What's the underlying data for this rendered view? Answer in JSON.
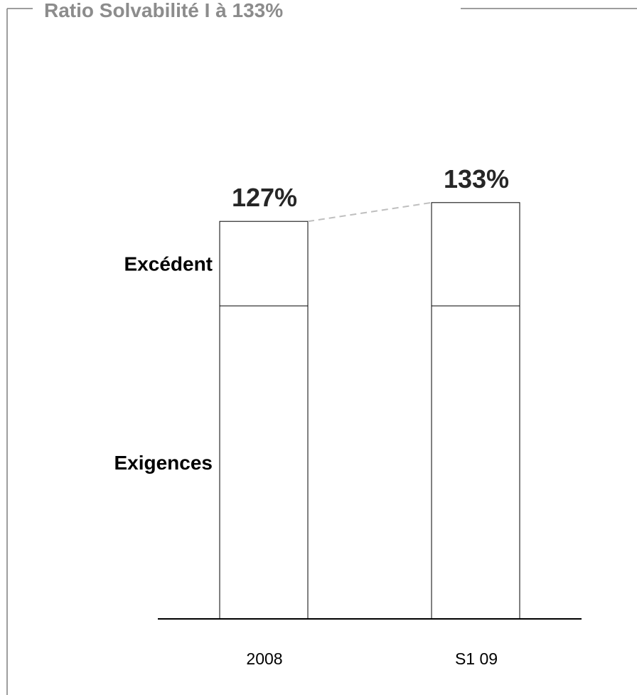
{
  "frame": {
    "title": "Ratio Solvabilité I à 133%"
  },
  "chart_data": {
    "type": "bar",
    "stacked": true,
    "title": "Ratio Solvabilité I à 133%",
    "xlabel": "",
    "ylabel": "",
    "categories": [
      "2008",
      "S1 09"
    ],
    "series": [
      {
        "name": "Exigences",
        "values": [
          100,
          100
        ]
      },
      {
        "name": "Excédent",
        "values": [
          27,
          33
        ]
      }
    ],
    "totals": [
      127,
      133
    ],
    "total_labels": [
      "127%",
      "133%"
    ],
    "ylim": [
      0,
      155
    ],
    "grid": false,
    "legend": "series labels at left of first bar",
    "connector": "dashed line joining bar tops",
    "colors": {
      "bar_fill": "#ffffff",
      "bar_stroke": "#000000",
      "connector": "#bfbfbf",
      "frame": "#7f7f7f",
      "title": "#8c8c8c"
    }
  }
}
